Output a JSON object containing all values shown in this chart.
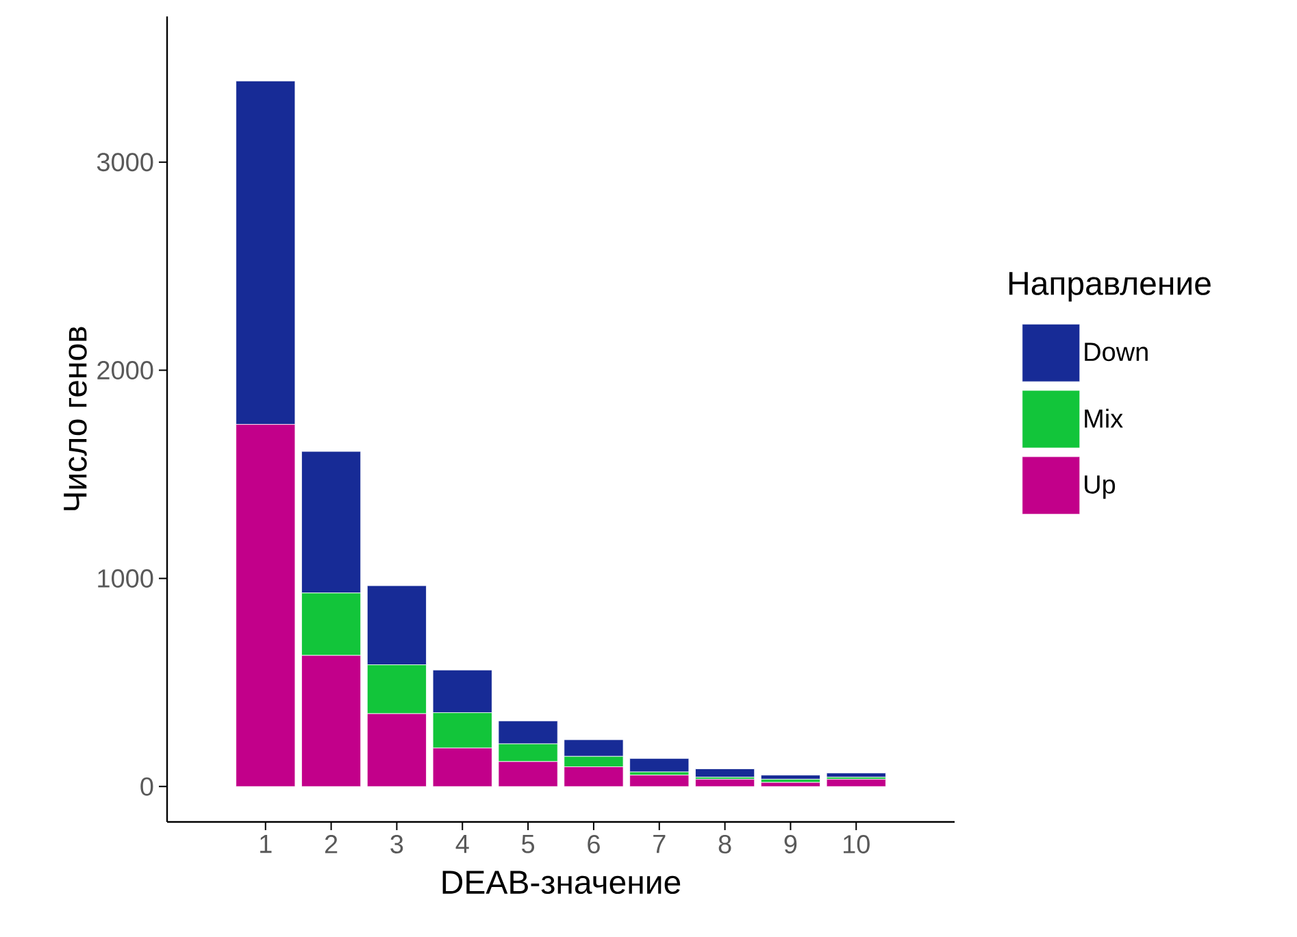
{
  "chart_data": {
    "type": "bar",
    "stacked": true,
    "xlabel": "DEAB-значение",
    "ylabel": "Число генов",
    "legend_title": "Направление",
    "legend": "right",
    "grid": false,
    "categories": [
      "1",
      "2",
      "3",
      "4",
      "5",
      "6",
      "7",
      "8",
      "9",
      "10"
    ],
    "ylim": [
      -170,
      3700
    ],
    "yticks": [
      0,
      1000,
      2000,
      3000
    ],
    "series": [
      {
        "name": "Up",
        "color": "#c2008a",
        "values": [
          1740,
          630,
          350,
          185,
          120,
          95,
          55,
          35,
          20,
          35
        ]
      },
      {
        "name": "Mix",
        "color": "#12c53a",
        "values": [
          0,
          300,
          235,
          170,
          85,
          50,
          15,
          10,
          15,
          10
        ]
      },
      {
        "name": "Down",
        "color": "#172b96",
        "values": [
          1650,
          680,
          380,
          205,
          110,
          80,
          65,
          40,
          20,
          20
        ]
      }
    ]
  }
}
